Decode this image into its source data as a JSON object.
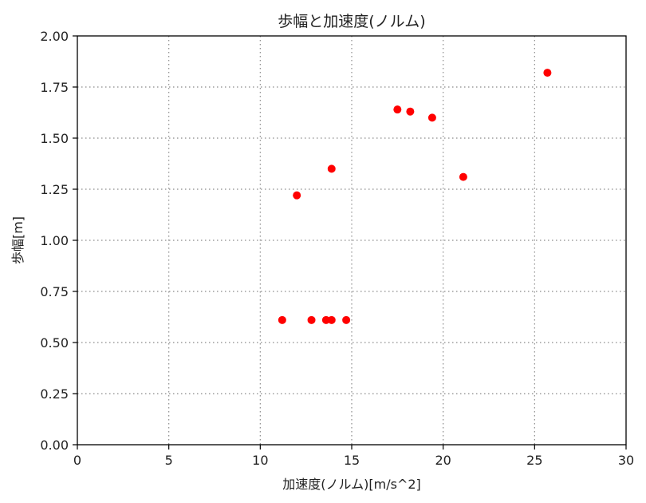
{
  "chart_data": {
    "type": "scatter",
    "title": "歩幅と加速度(ノルム)",
    "xlabel": "加速度(ノルム)[m/s^2]",
    "ylabel": "歩幅[m]",
    "xlim": [
      0,
      30
    ],
    "ylim": [
      0,
      2.0
    ],
    "xticks": [
      0,
      5,
      10,
      15,
      20,
      25,
      30
    ],
    "xtick_labels": [
      "0",
      "5",
      "10",
      "15",
      "20",
      "25",
      "30"
    ],
    "yticks": [
      0,
      0.25,
      0.5,
      0.75,
      1.0,
      1.25,
      1.5,
      1.75,
      2.0
    ],
    "ytick_labels": [
      "0.00",
      "0.25",
      "0.50",
      "0.75",
      "1.00",
      "1.25",
      "1.50",
      "1.75",
      "2.00"
    ],
    "grid": true,
    "marker_color": "#ff0000",
    "series": [
      {
        "points": [
          {
            "x": 11.2,
            "y": 0.61
          },
          {
            "x": 12.0,
            "y": 1.22
          },
          {
            "x": 12.8,
            "y": 0.61
          },
          {
            "x": 13.6,
            "y": 0.61
          },
          {
            "x": 13.9,
            "y": 0.61
          },
          {
            "x": 13.9,
            "y": 1.35
          },
          {
            "x": 14.7,
            "y": 0.61
          },
          {
            "x": 17.5,
            "y": 1.64
          },
          {
            "x": 18.2,
            "y": 1.63
          },
          {
            "x": 19.4,
            "y": 1.6
          },
          {
            "x": 21.1,
            "y": 1.31
          },
          {
            "x": 25.7,
            "y": 1.82
          }
        ]
      }
    ]
  }
}
